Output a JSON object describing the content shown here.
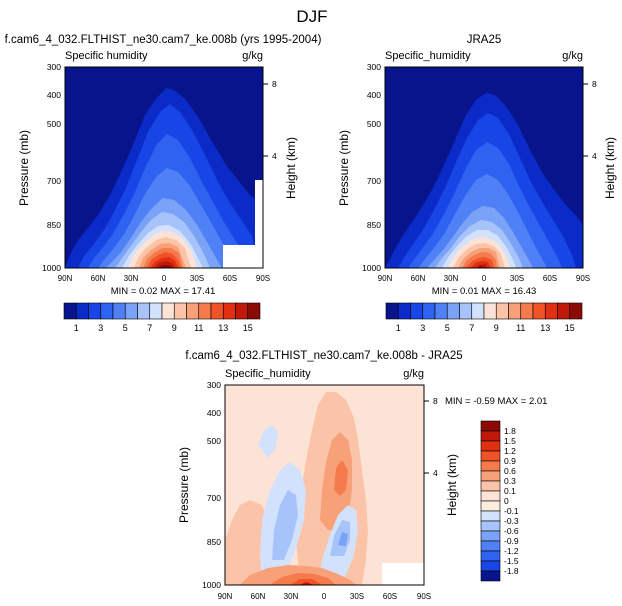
{
  "main_title": "DJF",
  "units": "g/kg",
  "chart_data": [
    {
      "type": "heatmap",
      "title": "f.cam6_4_032.FLTHIST_ne30.cam7_ke.008b (yrs 1995-2004)",
      "subtitle": "Specific humidity",
      "units": "g/kg",
      "xlabel": "",
      "ylabel": "Pressure (mb)",
      "ylabel_right": "Height (km)",
      "x_ticks": [
        "90N",
        "60N",
        "30N",
        "0",
        "30S",
        "60S",
        "90S"
      ],
      "y_ticks": [
        "300",
        "400",
        "500",
        "700",
        "850",
        "1000"
      ],
      "y_right_ticks": [
        "8",
        "4"
      ],
      "xlim": [
        90,
        -90
      ],
      "ylim": [
        1000,
        300
      ],
      "y_scale": "log",
      "stats": "MIN =  0.02  MAX =  17.41",
      "min": 0.02,
      "max": 17.41,
      "contour_levels": [
        1,
        2,
        3,
        4,
        5,
        6,
        7,
        8,
        9,
        10,
        11,
        12,
        13,
        14,
        15,
        16
      ],
      "max_center_lat": 0,
      "has_missing_box_lower_right": true
    },
    {
      "type": "heatmap",
      "title": "JRA25",
      "subtitle": "Specific_humidity",
      "units": "g/kg",
      "xlabel": "",
      "ylabel": "Pressure (mb)",
      "ylabel_right": "Height (km)",
      "x_ticks": [
        "90N",
        "60N",
        "30N",
        "0",
        "30S",
        "60S",
        "90S"
      ],
      "y_ticks": [
        "300",
        "400",
        "500",
        "700",
        "850",
        "1000"
      ],
      "y_right_ticks": [
        "8",
        "4"
      ],
      "xlim": [
        90,
        -90
      ],
      "ylim": [
        1000,
        300
      ],
      "y_scale": "log",
      "stats": "MIN =  0.01  MAX =  16.43",
      "min": 0.01,
      "max": 16.43,
      "contour_levels": [
        1,
        2,
        3,
        4,
        5,
        6,
        7,
        8,
        9,
        10,
        11,
        12,
        13,
        14,
        15,
        16
      ],
      "max_center_lat": 0
    },
    {
      "type": "heatmap",
      "title": "f.cam6_4_032.FLTHIST_ne30.cam7_ke.008b - JRA25",
      "subtitle": "Specific_humidity",
      "units": "g/kg",
      "xlabel": "",
      "ylabel": "Pressure (mb)",
      "ylabel_right": "Height (km)",
      "x_ticks": [
        "90N",
        "60N",
        "30N",
        "0",
        "30S",
        "60S",
        "90S"
      ],
      "y_ticks": [
        "300",
        "400",
        "500",
        "700",
        "850",
        "1000"
      ],
      "y_right_ticks": [
        "8",
        "4"
      ],
      "xlim": [
        90,
        -90
      ],
      "ylim": [
        1000,
        300
      ],
      "y_scale": "log",
      "stats": "MIN = -0.59  MAX =  2.01",
      "min": -0.59,
      "max": 2.01,
      "contour_levels": [
        -1.8,
        -1.5,
        -1.2,
        -0.9,
        -0.6,
        -0.3,
        -0.1,
        0,
        0.1,
        0.3,
        0.6,
        0.9,
        1.2,
        1.5,
        1.8
      ]
    }
  ],
  "colorbar_main": {
    "labels": [
      "1",
      "3",
      "5",
      "7",
      "9",
      "11",
      "13",
      "15"
    ],
    "colors": [
      "#07148c",
      "#0b2bc8",
      "#1745e6",
      "#2e62f0",
      "#4f80f5",
      "#7aa3f8",
      "#a7c4fa",
      "#d3e2fc",
      "#fde3d6",
      "#fbc4a8",
      "#f8a078",
      "#f57a4c",
      "#ef5327",
      "#e02f11",
      "#c0190a",
      "#8c0a05"
    ]
  },
  "colorbar_diff": {
    "labels": [
      "1.8",
      "1.5",
      "1.2",
      "0.9",
      "0.6",
      "0.3",
      "0.1",
      "0",
      "-0.1",
      "-0.3",
      "-0.6",
      "-0.9",
      "-1.2",
      "-1.5",
      "-1.8"
    ],
    "colors": [
      "#8c0a05",
      "#c0190a",
      "#e02f11",
      "#ef5327",
      "#f57a4c",
      "#f8a078",
      "#fbc4a8",
      "#fde3d6",
      "#fbeede",
      "#d3e2fc",
      "#a7c4fa",
      "#7aa3f8",
      "#4f80f5",
      "#2e62f0",
      "#1745e6",
      "#07148c"
    ]
  }
}
